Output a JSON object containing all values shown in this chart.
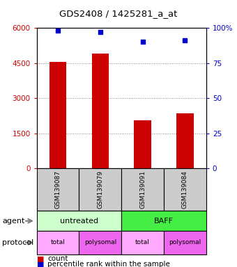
{
  "title": "GDS2408 / 1425281_a_at",
  "samples": [
    "GSM139087",
    "GSM139079",
    "GSM139091",
    "GSM139084"
  ],
  "bar_values": [
    4550,
    4900,
    2050,
    2350
  ],
  "dot_values_pct": [
    98,
    97,
    90,
    91
  ],
  "left_ylim": [
    0,
    6000
  ],
  "left_yticks": [
    0,
    1500,
    3000,
    4500,
    6000
  ],
  "right_ylim": [
    0,
    100
  ],
  "right_yticks": [
    0,
    25,
    50,
    75,
    100
  ],
  "bar_color": "#cc0000",
  "dot_color": "#0000cc",
  "agent_row": [
    {
      "label": "untreated",
      "span": [
        0,
        2
      ],
      "color": "#ccffcc"
    },
    {
      "label": "BAFF",
      "span": [
        2,
        4
      ],
      "color": "#44ee44"
    }
  ],
  "protocol_row": [
    {
      "label": "total",
      "color": "#ffaaff"
    },
    {
      "label": "polysomal",
      "color": "#ee66ee"
    },
    {
      "label": "total",
      "color": "#ffaaff"
    },
    {
      "label": "polysomal",
      "color": "#ee66ee"
    }
  ],
  "sample_box_color": "#cccccc",
  "grid_color": "#888888",
  "left_tick_color": "#cc0000",
  "right_tick_color": "#0000cc",
  "legend_count_color": "#cc0000",
  "legend_pct_color": "#0000cc",
  "figsize": [
    3.4,
    3.84
  ],
  "dpi": 100
}
